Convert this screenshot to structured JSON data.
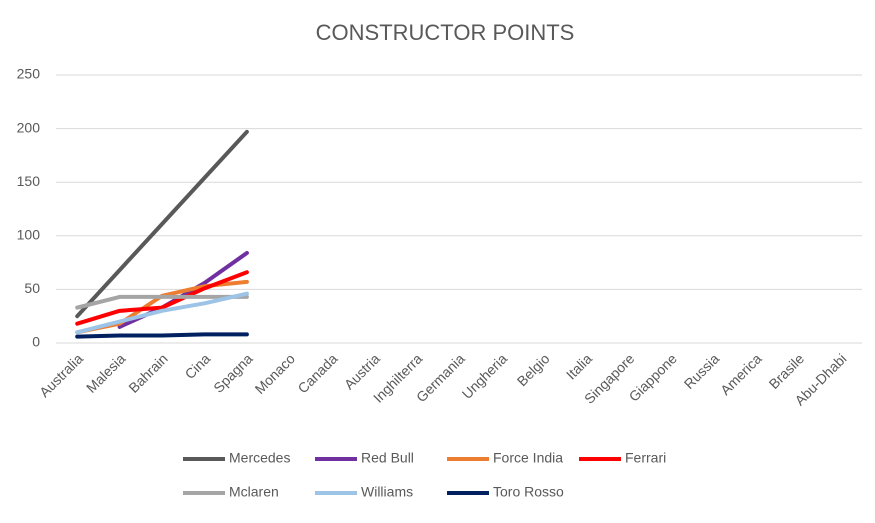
{
  "chart_data": {
    "type": "line",
    "title": "CONSTRUCTOR POINTS",
    "categories": [
      "Australia",
      "Malesia",
      "Bahrain",
      "Cina",
      "Spagna",
      "Monaco",
      "Canada",
      "Austria",
      "Inghilterra",
      "Germania",
      "Ungheria",
      "Belgio",
      "Italia",
      "Singapore",
      "Giappone",
      "Russia",
      "America",
      "Brasile",
      "Abu-Dhabi"
    ],
    "series": [
      {
        "name": "Mercedes",
        "color": "#595959",
        "values": [
          25,
          68,
          111,
          154,
          197,
          null,
          null,
          null,
          null,
          null,
          null,
          null,
          null,
          null,
          null,
          null,
          null,
          null,
          null
        ]
      },
      {
        "name": "Red Bull",
        "color": "#7030a0",
        "values": [
          null,
          15,
          33,
          56,
          84,
          null,
          null,
          null,
          null,
          null,
          null,
          null,
          null,
          null,
          null,
          null,
          null,
          null,
          null
        ]
      },
      {
        "name": "Force India",
        "color": "#ed7d31",
        "values": [
          10,
          18,
          44,
          53,
          57,
          null,
          null,
          null,
          null,
          null,
          null,
          null,
          null,
          null,
          null,
          null,
          null,
          null,
          null
        ]
      },
      {
        "name": "Ferrari",
        "color": "#ff0000",
        "values": [
          18,
          30,
          33,
          51,
          66,
          null,
          null,
          null,
          null,
          null,
          null,
          null,
          null,
          null,
          null,
          null,
          null,
          null,
          null
        ]
      },
      {
        "name": "Mclaren",
        "color": "#a5a5a5",
        "values": [
          33,
          43,
          43,
          43,
          43,
          null,
          null,
          null,
          null,
          null,
          null,
          null,
          null,
          null,
          null,
          null,
          null,
          null,
          null
        ]
      },
      {
        "name": "Williams",
        "color": "#9dc3e6",
        "values": [
          10,
          20,
          30,
          37,
          46,
          null,
          null,
          null,
          null,
          null,
          null,
          null,
          null,
          null,
          null,
          null,
          null,
          null,
          null
        ]
      },
      {
        "name": "Toro Rosso",
        "color": "#002060",
        "values": [
          6,
          7,
          7,
          8,
          8,
          null,
          null,
          null,
          null,
          null,
          null,
          null,
          null,
          null,
          null,
          null,
          null,
          null,
          null
        ]
      }
    ],
    "ylim": [
      0,
      250
    ],
    "yticks": [
      0,
      50,
      100,
      150,
      200,
      250
    ],
    "grid": true,
    "legend": "bottom"
  }
}
